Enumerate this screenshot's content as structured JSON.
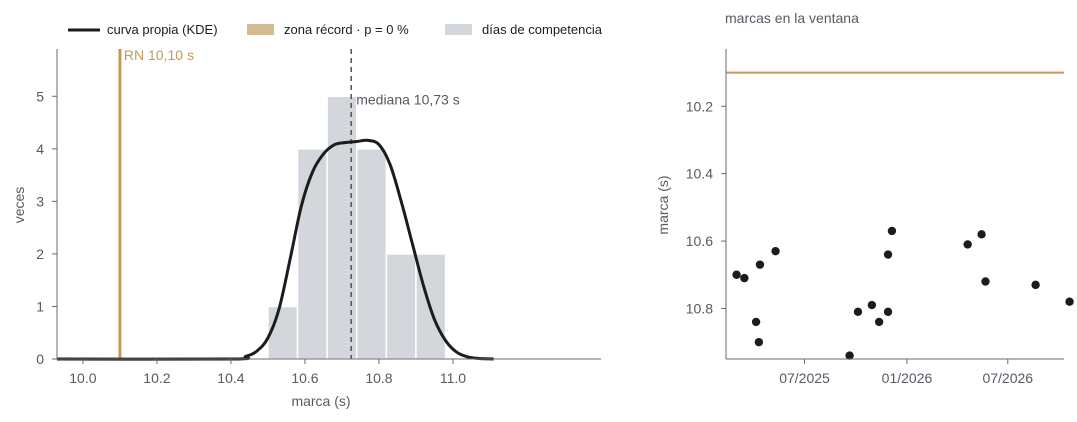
{
  "colors": {
    "kde": "#1c1c1e",
    "record": "#c29a5a",
    "record_legend": "#d4bc92",
    "hist": "#d3d6da",
    "median": "#555b63",
    "text": "#555b63",
    "points": "#1c1c1e"
  },
  "chart_data": [
    {
      "type": "bar",
      "panel": "left",
      "title": "",
      "xlabel": "marca (s)",
      "ylabel": "veces",
      "xlim": [
        9.93,
        11.4
      ],
      "ylim": [
        0,
        5.9
      ],
      "xticks": [
        "10.0",
        "10.2",
        "10.4",
        "10.6",
        "10.8",
        "11.0"
      ],
      "xtick_values": [
        10.0,
        10.2,
        10.4,
        10.6,
        10.8,
        11.0
      ],
      "yticks": [
        "0",
        "1",
        "2",
        "3",
        "4",
        "5"
      ],
      "ytick_values": [
        0,
        1,
        2,
        3,
        4,
        5
      ],
      "grid": false,
      "legend": {
        "placement": "top",
        "entries": [
          {
            "label": "curva propia (KDE)",
            "kind": "line"
          },
          {
            "label": "zona récord · p = 0 %",
            "kind": "patch-record"
          },
          {
            "label": "días de competencia",
            "kind": "patch-hist"
          }
        ]
      },
      "histogram": {
        "name": "días de competencia",
        "bins": [
          {
            "from": 10.5,
            "to": 10.58,
            "count": 1
          },
          {
            "from": 10.58,
            "to": 10.66,
            "count": 4
          },
          {
            "from": 10.66,
            "to": 10.74,
            "count": 5
          },
          {
            "from": 10.74,
            "to": 10.82,
            "count": 4
          },
          {
            "from": 10.82,
            "to": 10.9,
            "count": 2
          },
          {
            "from": 10.9,
            "to": 10.98,
            "count": 2
          }
        ]
      },
      "kde": {
        "name": "curva propia (KDE)",
        "x": [
          9.93,
          10.4,
          10.44,
          10.47,
          10.5,
          10.53,
          10.56,
          10.59,
          10.62,
          10.65,
          10.68,
          10.71,
          10.74,
          10.77,
          10.8,
          10.83,
          10.86,
          10.89,
          10.92,
          10.95,
          10.98,
          11.01,
          11.04,
          11.07,
          11.11
        ],
        "y": [
          0.0,
          0.0,
          0.05,
          0.15,
          0.4,
          0.95,
          1.9,
          2.9,
          3.55,
          3.9,
          4.08,
          4.12,
          4.14,
          4.16,
          4.08,
          3.7,
          3.0,
          2.2,
          1.4,
          0.75,
          0.35,
          0.13,
          0.04,
          0.01,
          0.0
        ]
      },
      "record_line": {
        "x": 10.1,
        "label": "RN 10,10 s"
      },
      "median_line": {
        "x": 10.725,
        "label": "mediana 10,73 s"
      }
    },
    {
      "type": "scatter",
      "panel": "right",
      "title": "marcas en la ventana",
      "xlabel": "",
      "ylabel": "marca (s)",
      "xlim": [
        "2025-02-10",
        "2026-10-10"
      ],
      "ylim": [
        10.95,
        10.03
      ],
      "y_inverted": true,
      "xticks": [
        "07/2025",
        "01/2026",
        "07/2026"
      ],
      "xtick_values": [
        "2025-07-01",
        "2026-01-01",
        "2026-07-01"
      ],
      "yticks": [
        "10.2",
        "10.4",
        "10.6",
        "10.8"
      ],
      "ytick_values": [
        10.2,
        10.4,
        10.6,
        10.8
      ],
      "grid": false,
      "record_line": {
        "y": 10.1
      },
      "points": [
        {
          "x": "2025-03-01",
          "y": 10.7
        },
        {
          "x": "2025-03-15",
          "y": 10.71
        },
        {
          "x": "2025-04-05",
          "y": 10.84
        },
        {
          "x": "2025-04-10",
          "y": 10.9
        },
        {
          "x": "2025-04-12",
          "y": 10.67
        },
        {
          "x": "2025-05-10",
          "y": 10.63
        },
        {
          "x": "2025-09-20",
          "y": 10.94
        },
        {
          "x": "2025-10-05",
          "y": 10.81
        },
        {
          "x": "2025-10-30",
          "y": 10.79
        },
        {
          "x": "2025-11-12",
          "y": 10.84
        },
        {
          "x": "2025-11-28",
          "y": 10.81
        },
        {
          "x": "2025-11-28",
          "y": 10.64
        },
        {
          "x": "2025-12-05",
          "y": 10.57
        },
        {
          "x": "2026-04-20",
          "y": 10.61
        },
        {
          "x": "2026-05-15",
          "y": 10.58
        },
        {
          "x": "2026-05-22",
          "y": 10.72
        },
        {
          "x": "2026-08-20",
          "y": 10.73
        },
        {
          "x": "2026-10-20",
          "y": 10.78
        }
      ]
    }
  ]
}
